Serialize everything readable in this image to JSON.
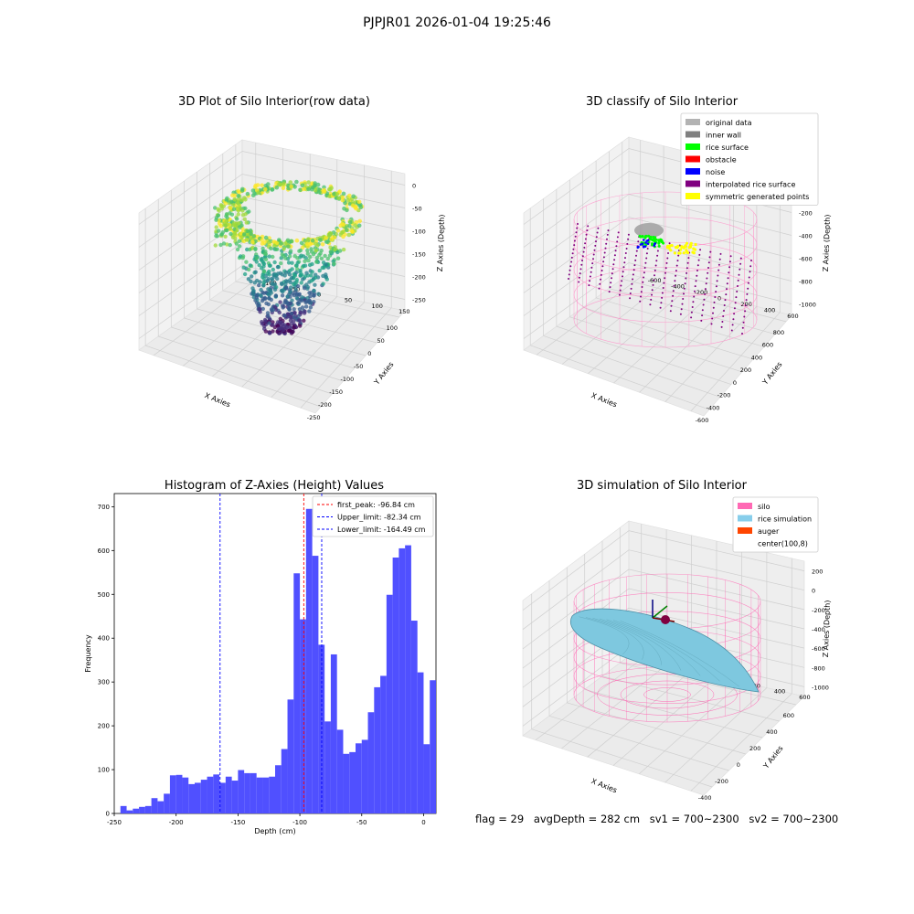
{
  "figure_title": "PJPJR01 2026-01-04 19:25:46",
  "chart_data": [
    {
      "type": "scatter",
      "projection": "3d",
      "title": "3D Plot of Silo Interior(row data)",
      "xlabel": "X Axies",
      "ylabel": "Y Axies",
      "zlabel": "Z Axies (Depth)",
      "xticks": [
        "-250",
        "-200",
        "-150",
        "-100",
        "-50",
        "0",
        "50",
        "100"
      ],
      "yticks": [
        "-100",
        "-50",
        "0",
        "50",
        "100",
        "150"
      ],
      "zticks": [
        "0",
        "-50",
        "-100",
        "-150",
        "-200",
        "-250"
      ],
      "xlim": [
        -250,
        100
      ],
      "ylim": [
        -100,
        150
      ],
      "zlim": [
        -250,
        0
      ],
      "colormap": "viridis",
      "grid": true
    },
    {
      "type": "scatter",
      "projection": "3d",
      "title": "3D classify of Silo Interior",
      "xlabel": "X Axies",
      "ylabel": "Y Axies",
      "zlabel": "Z Axies (Depth)",
      "xticks": [
        "-600",
        "-400",
        "-200",
        "0",
        "200",
        "400",
        "600",
        "800"
      ],
      "yticks": [
        "-600",
        "-400",
        "-200",
        "0",
        "200",
        "400",
        "600"
      ],
      "zticks": [
        "0",
        "-200",
        "-400",
        "-600",
        "-800",
        "-1000"
      ],
      "legend_position": "top-right",
      "legend": [
        {
          "label": "original data",
          "color": "#b3b3b3"
        },
        {
          "label": "inner wall",
          "color": "#808080"
        },
        {
          "label": "rice surface",
          "color": "#00ff00"
        },
        {
          "label": "obstacle",
          "color": "#ff0000"
        },
        {
          "label": "noise",
          "color": "#0000ff"
        },
        {
          "label": "interpolated rice surface",
          "color": "#800080"
        },
        {
          "label": "symmetric generated points",
          "color": "#ffff00"
        }
      ],
      "grid": true
    },
    {
      "type": "bar",
      "title": "Histogram of Z-Axies (Height) Values",
      "xlabel": "Depth (cm)",
      "ylabel": "Frequency",
      "xlim": [
        -250,
        10
      ],
      "ylim": [
        0,
        730
      ],
      "xticks": [
        "-250",
        "-200",
        "-150",
        "-100",
        "-50",
        "0"
      ],
      "yticks": [
        "0",
        "100",
        "200",
        "300",
        "400",
        "500",
        "600",
        "700"
      ],
      "bar_color": "#4c4cff",
      "bin_start": -245,
      "bin_width": 5,
      "values": [
        17,
        7,
        11,
        15,
        17,
        35,
        28,
        45,
        87,
        88,
        82,
        67,
        70,
        77,
        84,
        89,
        70,
        84,
        75,
        99,
        92,
        92,
        82,
        82,
        84,
        110,
        147,
        260,
        548,
        443,
        695,
        588,
        385,
        210,
        363,
        191,
        136,
        140,
        160,
        168,
        231,
        288,
        314,
        499,
        584,
        605,
        612,
        440,
        322,
        158,
        304
      ],
      "vlines": [
        {
          "label": "first_peak: -96.84 cm",
          "x": -96.84,
          "color": "#ff0000"
        },
        {
          "label": "Upper_limit: -82.34 cm",
          "x": -82.34,
          "color": "#0000ff"
        },
        {
          "label": "Lower_limit: -164.49 cm",
          "x": -164.49,
          "color": "#0000ff"
        }
      ],
      "legend_position": "top-right",
      "grid": false
    },
    {
      "type": "surface",
      "projection": "3d",
      "title": "3D simulation of Silo Interior",
      "xlabel": "X Axies",
      "ylabel": "Y Axies",
      "zlabel": "Z Axies (Depth)",
      "xticks": [
        "-400",
        "-200",
        "0",
        "200",
        "400",
        "600"
      ],
      "yticks": [
        "-600",
        "-400",
        "-200",
        "0",
        "200",
        "400",
        "600"
      ],
      "zticks": [
        "200",
        "0",
        "-200",
        "-400",
        "-600",
        "-800",
        "-1000"
      ],
      "legend_position": "top-right",
      "legend": [
        {
          "label": "silo",
          "color": "#ff69b4"
        },
        {
          "label": "rice simulation",
          "color": "#87ceeb"
        },
        {
          "label": "auger",
          "color": "#ff4500"
        },
        {
          "label": "center(100,8)",
          "color": "#ffffff"
        }
      ],
      "grid": true
    }
  ],
  "footer": {
    "flag": "flag = 29",
    "avg_depth": "avgDepth = 282 cm",
    "sv1": "sv1 = 700~2300",
    "sv2": "sv2 = 700~2300"
  }
}
